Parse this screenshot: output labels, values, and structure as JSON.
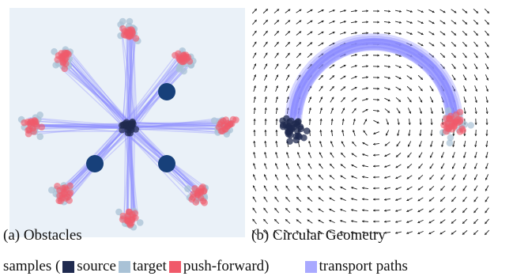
{
  "panels": {
    "a": {
      "caption": "(a) Obstacles"
    },
    "b": {
      "caption": "(b) Circular Geometry"
    }
  },
  "legend": {
    "prefix": "samples (",
    "source": "source",
    "target": "target",
    "pushforward": "push-forward)",
    "paths": "transport paths"
  },
  "colors": {
    "source": "#1f2a4f",
    "target": "#a9c2d6",
    "pushforward": "#f05a6a",
    "paths": "#8c8cff",
    "obstacle": "#17407a",
    "panel_a_bg": "#eaf1f8"
  }
}
